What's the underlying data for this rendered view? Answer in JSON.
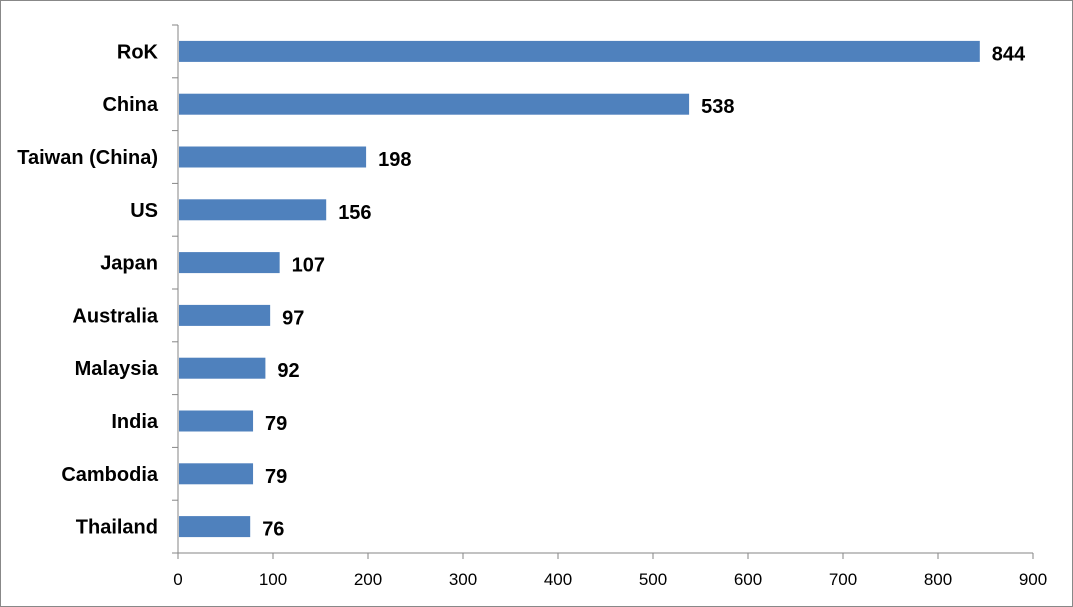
{
  "chart_data": {
    "type": "bar",
    "orientation": "horizontal",
    "categories": [
      "RoK",
      "China",
      "Taiwan (China)",
      "US",
      "Japan",
      "Australia",
      "Malaysia",
      "India",
      "Cambodia",
      "Thailand"
    ],
    "values": [
      844,
      538,
      198,
      156,
      107,
      97,
      92,
      79,
      79,
      76
    ],
    "value_labels": [
      "844",
      "538",
      "198",
      "156",
      "107",
      "97",
      "92",
      "79",
      "79",
      "76"
    ],
    "xlim": [
      0,
      900
    ],
    "x_ticks": [
      "0",
      "100",
      "200",
      "300",
      "400",
      "500",
      "600",
      "700",
      "800",
      "900"
    ],
    "grid": false,
    "legend": "none",
    "bar_color": "#4f81bd",
    "axis_color": "#868686"
  }
}
